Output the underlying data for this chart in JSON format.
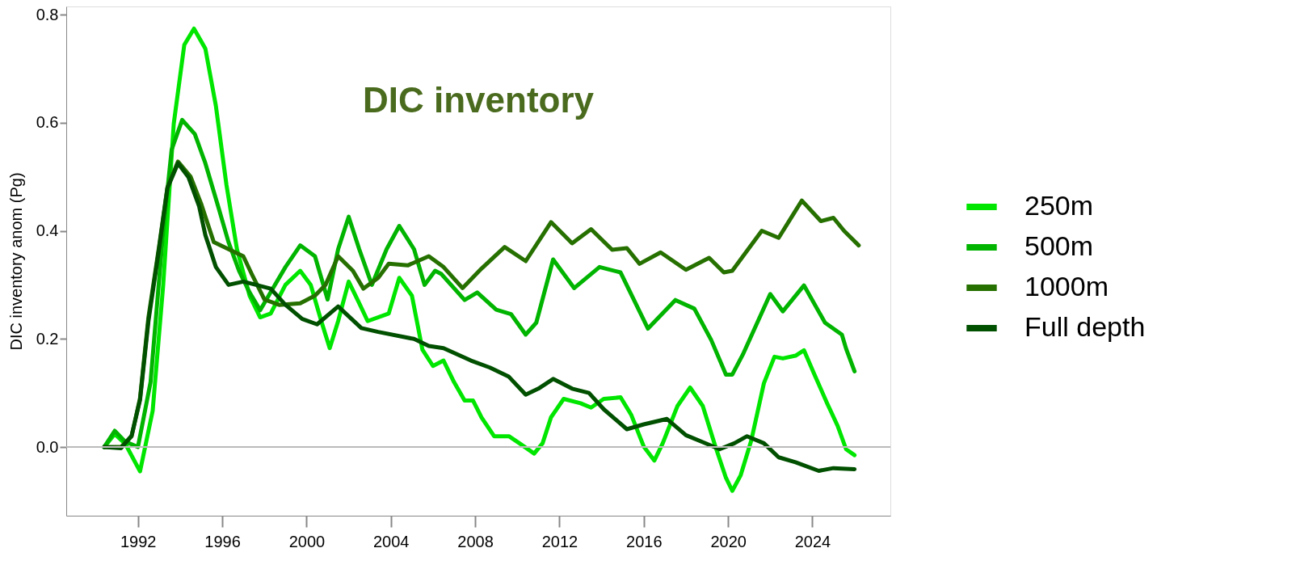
{
  "chart_data": {
    "type": "line",
    "title": "DIC inventory",
    "ylabel": "DIC inventory anom (Pg)",
    "xlim": [
      1988.6,
      2027.7
    ],
    "ylim": [
      -0.127,
      0.815
    ],
    "xticks": [
      1992,
      1996,
      2000,
      2004,
      2008,
      2012,
      2016,
      2020,
      2024
    ],
    "yticks": [
      {
        "value": 0,
        "label": "0.0"
      },
      {
        "value": 0.2,
        "label": "0.2"
      },
      {
        "value": 0.4,
        "label": "0.4"
      },
      {
        "value": 0.6,
        "label": "0.6"
      },
      {
        "value": 0.8,
        "label": "0.8"
      }
    ],
    "grid": false,
    "legend": "right",
    "ref_lines": [
      {
        "axis": "y",
        "value": 0,
        "color": "#bbbbbb"
      }
    ],
    "series": [
      {
        "name": "250m",
        "color": "#00e600",
        "x": [
          1990.4,
          1990.9,
          1991.4,
          1992.1,
          1992.7,
          1993.2,
          1993.7,
          1994.2,
          1994.66,
          1995.2,
          1995.7,
          1996.2,
          1996.7,
          1997.3,
          1997.8,
          1998.3,
          1999.0,
          1999.7,
          2000.2,
          2000.7,
          2001.1,
          2001.5,
          2002.0,
          2002.5,
          2002.9,
          2003.9,
          2004.4,
          2005.0,
          2005.5,
          2006.0,
          2006.5,
          2007.0,
          2007.5,
          2007.9,
          2008.3,
          2008.9,
          2009.6,
          2010.1,
          2010.8,
          2011.2,
          2011.6,
          2012.2,
          2013.0,
          2013.5,
          2014.1,
          2014.9,
          2015.4,
          2016.0,
          2016.5,
          2016.9,
          2017.6,
          2018.2,
          2018.8,
          2019.4,
          2019.9,
          2020.2,
          2020.6,
          2021.1,
          2021.7,
          2022.2,
          2022.6,
          2023.2,
          2023.6,
          2024.1,
          2024.7,
          2025.2,
          2025.6,
          2026.0
        ],
        "values": [
          0,
          0.024,
          0.006,
          -0.045,
          0.067,
          0.3,
          0.598,
          0.744,
          0.774,
          0.737,
          0.631,
          0.485,
          0.366,
          0.28,
          0.24,
          0.247,
          0.3,
          0.326,
          0.3,
          0.233,
          0.183,
          0.233,
          0.306,
          0.266,
          0.233,
          0.247,
          0.313,
          0.28,
          0.18,
          0.15,
          0.16,
          0.12,
          0.086,
          0.086,
          0.055,
          0.02,
          0.02,
          0.007,
          -0.012,
          0.007,
          0.055,
          0.089,
          0.081,
          0.073,
          0.089,
          0.092,
          0.06,
          0.001,
          -0.025,
          0.007,
          0.076,
          0.11,
          0.076,
          0.001,
          -0.057,
          -0.081,
          -0.052,
          0.012,
          0.118,
          0.167,
          0.164,
          0.169,
          0.179,
          0.134,
          0.081,
          0.039,
          -0.004,
          -0.015
        ]
      },
      {
        "name": "500m",
        "color": "#00b400",
        "x": [
          1990.4,
          1990.9,
          1991.4,
          1992.0,
          1992.6,
          1993.2,
          1993.6,
          1994.1,
          1994.7,
          1995.2,
          1995.8,
          1996.3,
          1996.8,
          1997.3,
          1997.8,
          1998.5,
          1999.0,
          1999.7,
          2000.4,
          2001.0,
          2001.5,
          2002.0,
          2002.5,
          2003.1,
          2003.8,
          2004.4,
          2005.1,
          2005.6,
          2006.1,
          2006.4,
          2007.5,
          2008.1,
          2009.0,
          2009.7,
          2010.4,
          2010.9,
          2011.7,
          2012.7,
          2013.9,
          2014.9,
          2016.2,
          2017.5,
          2018.4,
          2019.2,
          2019.9,
          2020.2,
          2020.7,
          2022.0,
          2022.6,
          2023.6,
          2024.6,
          2025.4,
          2025.6,
          2026.0
        ],
        "values": [
          0,
          0.03,
          0.01,
          0.0,
          0.12,
          0.4,
          0.55,
          0.605,
          0.579,
          0.525,
          0.446,
          0.379,
          0.326,
          0.286,
          0.253,
          0.3,
          0.333,
          0.373,
          0.353,
          0.273,
          0.366,
          0.426,
          0.366,
          0.3,
          0.366,
          0.409,
          0.366,
          0.3,
          0.326,
          0.32,
          0.272,
          0.286,
          0.254,
          0.246,
          0.208,
          0.23,
          0.347,
          0.294,
          0.333,
          0.323,
          0.219,
          0.272,
          0.256,
          0.198,
          0.134,
          0.134,
          0.171,
          0.283,
          0.251,
          0.299,
          0.23,
          0.208,
          0.182,
          0.14
        ]
      },
      {
        "name": "1000m",
        "color": "#267000",
        "x": [
          1990.4,
          1991.2,
          1991.7,
          1992.1,
          1992.5,
          1993.0,
          1993.4,
          1993.9,
          1994.5,
          1995.0,
          1995.6,
          1996.3,
          1997.0,
          1997.4,
          1998.0,
          1998.7,
          1999.7,
          2000.4,
          2000.9,
          2001.5,
          2002.2,
          2002.7,
          2003.4,
          2003.9,
          2004.8,
          2005.8,
          2006.5,
          2007.4,
          2008.3,
          2009.4,
          2010.4,
          2011.6,
          2012.6,
          2013.5,
          2014.5,
          2015.2,
          2015.8,
          2016.8,
          2018.0,
          2019.1,
          2019.8,
          2020.2,
          2020.9,
          2021.6,
          2022.4,
          2023.1,
          2023.5,
          2024.4,
          2025.0,
          2025.5,
          2026.2
        ],
        "values": [
          0,
          0.0,
          0.02,
          0.09,
          0.24,
          0.37,
          0.48,
          0.528,
          0.5,
          0.45,
          0.379,
          0.366,
          0.353,
          0.32,
          0.273,
          0.263,
          0.266,
          0.28,
          0.3,
          0.353,
          0.326,
          0.293,
          0.313,
          0.339,
          0.336,
          0.353,
          0.333,
          0.294,
          0.33,
          0.37,
          0.344,
          0.416,
          0.377,
          0.403,
          0.365,
          0.368,
          0.339,
          0.36,
          0.328,
          0.35,
          0.323,
          0.326,
          0.363,
          0.4,
          0.387,
          0.431,
          0.456,
          0.418,
          0.424,
          0.4,
          0.373
        ]
      },
      {
        "name": "Full depth",
        "color": "#005000",
        "x": [
          1990.4,
          1991.2,
          1991.7,
          1992.1,
          1992.5,
          1993.0,
          1993.4,
          1993.9,
          1994.4,
          1994.9,
          1995.2,
          1995.7,
          1996.3,
          1997.0,
          1997.6,
          1998.3,
          1999.0,
          1999.8,
          2000.5,
          2001.5,
          2002.6,
          2003.4,
          2005.1,
          2005.8,
          2006.5,
          2007.8,
          2008.7,
          2009.6,
          2010.4,
          2011.0,
          2011.7,
          2012.6,
          2013.4,
          2014.1,
          2015.2,
          2016.0,
          2017.1,
          2018.0,
          2018.8,
          2019.6,
          2020.3,
          2020.9,
          2021.7,
          2022.4,
          2023.2,
          2024.3,
          2025.0,
          2026.0
        ],
        "values": [
          0,
          -0.002,
          0.021,
          0.087,
          0.233,
          0.366,
          0.479,
          0.525,
          0.499,
          0.446,
          0.392,
          0.333,
          0.3,
          0.306,
          0.3,
          0.293,
          0.263,
          0.237,
          0.227,
          0.26,
          0.22,
          0.213,
          0.2,
          0.187,
          0.183,
          0.16,
          0.147,
          0.13,
          0.097,
          0.108,
          0.126,
          0.108,
          0.1,
          0.07,
          0.033,
          0.042,
          0.052,
          0.022,
          0.009,
          -0.004,
          0.007,
          0.02,
          0.007,
          -0.019,
          -0.028,
          -0.044,
          -0.039,
          -0.041
        ]
      }
    ]
  }
}
